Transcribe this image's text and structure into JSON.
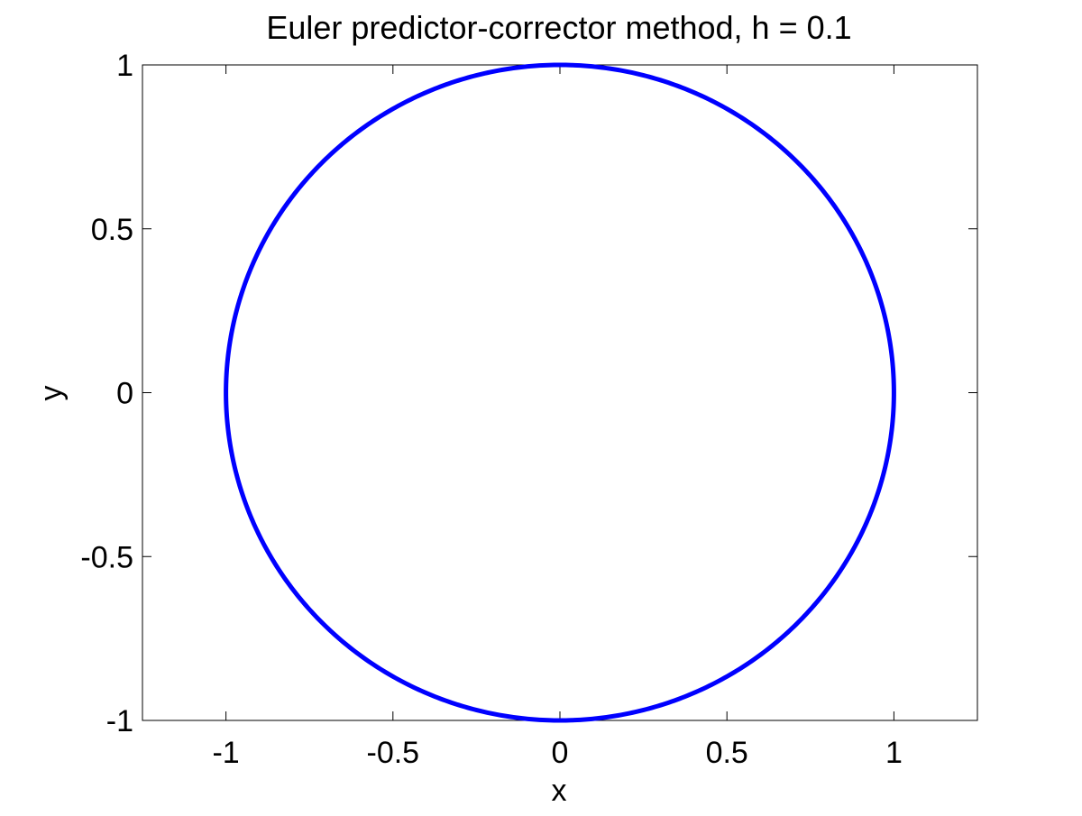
{
  "chart_data": {
    "type": "line",
    "title": "Euler predictor-corrector method, h = 0.1",
    "xlabel": "x",
    "ylabel": "y",
    "xlim": [
      -1.25,
      1.25
    ],
    "ylim": [
      -1,
      1
    ],
    "xticks": [
      -1,
      -0.5,
      0,
      0.5,
      1
    ],
    "xtick_labels": [
      "-1",
      "-0.5",
      "0",
      "0.5",
      "1"
    ],
    "yticks": [
      -1,
      -0.5,
      0,
      0.5,
      1
    ],
    "ytick_labels": [
      "-1",
      "-0.5",
      "0",
      "0.5",
      "1"
    ],
    "grid": false,
    "line_color": "#0000ff",
    "series": [
      {
        "shape": "closed curve (approximately unit circle, centered at origin)",
        "radius": 1.0,
        "center": [
          0,
          0
        ],
        "x": [
          1.0,
          0.866,
          0.5,
          0.0,
          -0.5,
          -0.866,
          -1.0,
          -0.866,
          -0.5,
          0.0,
          0.5,
          0.866,
          1.0
        ],
        "y": [
          0.0,
          0.5,
          0.866,
          1.0,
          0.866,
          0.5,
          0.0,
          -0.5,
          -0.866,
          -1.0,
          -0.866,
          -0.5,
          0.0
        ]
      }
    ]
  }
}
